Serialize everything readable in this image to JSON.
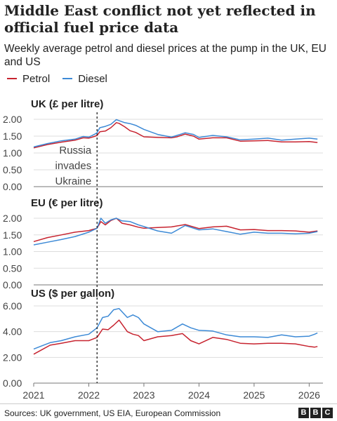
{
  "title": "Middle East conflict not yet reflected in official fuel price data",
  "subtitle": "Weekly average petrol and diesel prices at the pump in the UK, EU and US",
  "legend": [
    {
      "label": "Petrol",
      "color": "#c7232f"
    },
    {
      "label": "Diesel",
      "color": "#3d8ad6"
    }
  ],
  "footer": {
    "source": "Sources: UK government, US EIA, European Commission",
    "logo_letters": [
      "B",
      "B",
      "C"
    ]
  },
  "chart_data": [
    {
      "type": "line",
      "title": "UK (£ per litre)",
      "x_range": [
        2021.0,
        2026.25
      ],
      "ylim": [
        0,
        2.0
      ],
      "yticks": [
        "0.00",
        "0.50",
        "1.00",
        "1.50",
        "2.00"
      ],
      "grid": true,
      "annotation": {
        "x": 2022.15,
        "label": [
          "Russia",
          "invades",
          "Ukraine"
        ],
        "style": "dashed-vertical"
      },
      "series": [
        {
          "name": "Petrol",
          "color": "#c7232f",
          "x": [
            2021.0,
            2021.25,
            2021.5,
            2021.75,
            2021.9,
            2022.0,
            2022.1,
            2022.15,
            2022.2,
            2022.3,
            2022.4,
            2022.5,
            2022.55,
            2022.65,
            2022.75,
            2022.85,
            2023.0,
            2023.25,
            2023.5,
            2023.6,
            2023.75,
            2023.9,
            2024.0,
            2024.25,
            2024.5,
            2024.75,
            2025.0,
            2025.25,
            2025.5,
            2025.75,
            2026.0,
            2026.15
          ],
          "y": [
            1.15,
            1.25,
            1.32,
            1.38,
            1.45,
            1.44,
            1.49,
            1.52,
            1.63,
            1.65,
            1.75,
            1.9,
            1.88,
            1.78,
            1.66,
            1.61,
            1.48,
            1.46,
            1.45,
            1.48,
            1.56,
            1.5,
            1.41,
            1.45,
            1.45,
            1.35,
            1.36,
            1.37,
            1.33,
            1.33,
            1.34,
            1.31
          ]
        },
        {
          "name": "Diesel",
          "color": "#3d8ad6",
          "x": [
            2021.0,
            2021.25,
            2021.5,
            2021.75,
            2021.9,
            2022.0,
            2022.1,
            2022.15,
            2022.2,
            2022.3,
            2022.4,
            2022.5,
            2022.55,
            2022.65,
            2022.75,
            2022.85,
            2023.0,
            2023.25,
            2023.5,
            2023.6,
            2023.75,
            2023.9,
            2024.0,
            2024.25,
            2024.5,
            2024.75,
            2025.0,
            2025.25,
            2025.5,
            2025.75,
            2026.0,
            2026.15
          ],
          "y": [
            1.18,
            1.28,
            1.36,
            1.41,
            1.49,
            1.47,
            1.55,
            1.6,
            1.75,
            1.79,
            1.85,
            1.99,
            1.96,
            1.9,
            1.87,
            1.82,
            1.7,
            1.55,
            1.47,
            1.52,
            1.6,
            1.55,
            1.46,
            1.52,
            1.48,
            1.39,
            1.41,
            1.44,
            1.38,
            1.41,
            1.44,
            1.41
          ]
        }
      ]
    },
    {
      "type": "line",
      "title": "EU (€ per litre)",
      "x_range": [
        2021.0,
        2026.25
      ],
      "ylim": [
        0,
        2.0
      ],
      "yticks": [
        "0.00",
        "0.50",
        "1.00",
        "1.50",
        "2.00"
      ],
      "grid": true,
      "series": [
        {
          "name": "Petrol",
          "color": "#c7232f",
          "x": [
            2021.0,
            2021.25,
            2021.5,
            2021.75,
            2022.0,
            2022.15,
            2022.22,
            2022.3,
            2022.4,
            2022.5,
            2022.6,
            2022.75,
            2022.9,
            2023.0,
            2023.25,
            2023.5,
            2023.75,
            2024.0,
            2024.25,
            2024.5,
            2024.75,
            2025.0,
            2025.25,
            2025.5,
            2025.75,
            2026.0,
            2026.15
          ],
          "y": [
            1.3,
            1.42,
            1.5,
            1.58,
            1.63,
            1.7,
            1.9,
            1.8,
            1.93,
            2.0,
            1.85,
            1.8,
            1.73,
            1.7,
            1.72,
            1.74,
            1.81,
            1.69,
            1.74,
            1.76,
            1.65,
            1.66,
            1.63,
            1.63,
            1.62,
            1.58,
            1.62
          ]
        },
        {
          "name": "Diesel",
          "color": "#3d8ad6",
          "x": [
            2021.0,
            2021.25,
            2021.5,
            2021.75,
            2022.0,
            2022.15,
            2022.22,
            2022.3,
            2022.4,
            2022.5,
            2022.6,
            2022.75,
            2022.9,
            2023.0,
            2023.25,
            2023.5,
            2023.75,
            2024.0,
            2024.25,
            2024.5,
            2024.75,
            2025.0,
            2025.25,
            2025.5,
            2025.75,
            2026.0,
            2026.15
          ],
          "y": [
            1.2,
            1.28,
            1.36,
            1.45,
            1.58,
            1.7,
            2.0,
            1.85,
            1.95,
            2.0,
            1.92,
            1.9,
            1.8,
            1.75,
            1.62,
            1.55,
            1.78,
            1.65,
            1.68,
            1.6,
            1.52,
            1.58,
            1.55,
            1.55,
            1.53,
            1.55,
            1.6
          ]
        }
      ]
    },
    {
      "type": "line",
      "title": "US ($ per gallon)",
      "x_range": [
        2021.0,
        2026.25
      ],
      "ylim": [
        0,
        6.0
      ],
      "yticks": [
        "0.00",
        "2.00",
        "4.00",
        "6.00"
      ],
      "grid": true,
      "xticks": [
        "2021",
        "2022",
        "2023",
        "2024",
        "2025",
        "2026"
      ],
      "series": [
        {
          "name": "Petrol",
          "color": "#c7232f",
          "x": [
            2021.0,
            2021.15,
            2021.3,
            2021.5,
            2021.75,
            2022.0,
            2022.15,
            2022.25,
            2022.35,
            2022.45,
            2022.55,
            2022.7,
            2022.8,
            2022.9,
            2023.0,
            2023.25,
            2023.5,
            2023.7,
            2023.85,
            2024.0,
            2024.25,
            2024.5,
            2024.75,
            2025.0,
            2025.25,
            2025.5,
            2025.75,
            2026.0,
            2026.1,
            2026.15
          ],
          "y": [
            2.25,
            2.6,
            2.95,
            3.1,
            3.3,
            3.3,
            3.55,
            4.2,
            4.15,
            4.5,
            4.9,
            4.0,
            3.8,
            3.7,
            3.3,
            3.6,
            3.7,
            3.85,
            3.3,
            3.05,
            3.55,
            3.4,
            3.1,
            3.05,
            3.1,
            3.1,
            3.05,
            2.85,
            2.8,
            2.85
          ]
        },
        {
          "name": "Diesel",
          "color": "#3d8ad6",
          "x": [
            2021.0,
            2021.15,
            2021.3,
            2021.5,
            2021.75,
            2022.0,
            2022.15,
            2022.25,
            2022.35,
            2022.45,
            2022.55,
            2022.7,
            2022.8,
            2022.9,
            2023.0,
            2023.25,
            2023.5,
            2023.7,
            2023.85,
            2024.0,
            2024.25,
            2024.5,
            2024.75,
            2025.0,
            2025.25,
            2025.5,
            2025.75,
            2026.0,
            2026.1,
            2026.15
          ],
          "y": [
            2.65,
            2.9,
            3.15,
            3.3,
            3.6,
            3.8,
            4.3,
            5.1,
            5.2,
            5.7,
            5.8,
            5.1,
            5.3,
            5.1,
            4.6,
            4.0,
            4.1,
            4.6,
            4.3,
            4.1,
            4.05,
            3.75,
            3.6,
            3.6,
            3.55,
            3.75,
            3.6,
            3.65,
            3.8,
            3.9
          ]
        }
      ]
    }
  ]
}
